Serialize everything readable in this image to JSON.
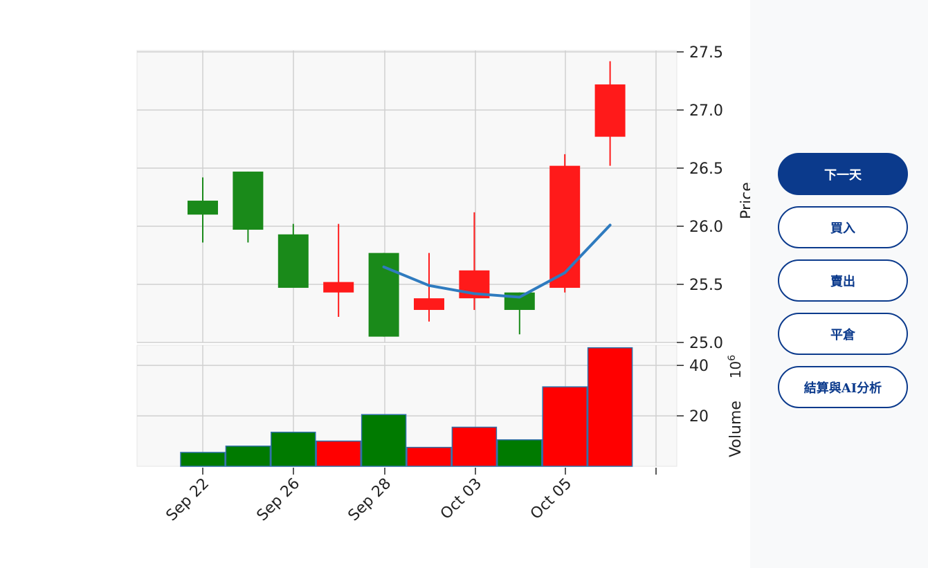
{
  "actions": {
    "next_day": "下一天",
    "buy": "買入",
    "sell": "賣出",
    "close_position": "平倉",
    "settle_ai": "結算與AI分析"
  },
  "colors": {
    "up": "#ff1a1a",
    "down": "#1a8a1a",
    "ma": "#2f7bbf",
    "accent": "#0b3a8c"
  },
  "chart_data": {
    "type": "candlestick",
    "price_axis": {
      "label": "Price",
      "ylim": [
        25.0,
        27.5
      ],
      "ticks": [
        "25.0",
        "25.5",
        "26.0",
        "26.5",
        "27.0",
        "27.5"
      ]
    },
    "volume_axis": {
      "label": "Volume",
      "multiplier_label": "1e6",
      "ticks": [
        "20",
        "40"
      ],
      "ylim": [
        0,
        48
      ]
    },
    "x_tick_labels": [
      "Sep 22",
      "Sep 26",
      "Sep 28",
      "Oct 03",
      "Oct 05"
    ],
    "candles": [
      {
        "open": 26.22,
        "high": 26.42,
        "low": 25.86,
        "close": 26.1,
        "volume": 5.5
      },
      {
        "open": 26.47,
        "high": 26.47,
        "low": 25.86,
        "close": 25.97,
        "volume": 8.0
      },
      {
        "open": 25.93,
        "high": 26.02,
        "low": 25.47,
        "close": 25.47,
        "volume": 13.5
      },
      {
        "open": 25.43,
        "high": 26.02,
        "low": 25.22,
        "close": 25.52,
        "volume": 10.0
      },
      {
        "open": 25.77,
        "high": 25.77,
        "low": 25.05,
        "close": 25.05,
        "volume": 20.5
      },
      {
        "open": 25.28,
        "high": 25.77,
        "low": 25.18,
        "close": 25.38,
        "volume": 7.5
      },
      {
        "open": 25.38,
        "high": 26.12,
        "low": 25.28,
        "close": 25.62,
        "volume": 15.5
      },
      {
        "open": 25.43,
        "high": 25.43,
        "low": 25.07,
        "close": 25.28,
        "volume": 10.5
      },
      {
        "open": 25.47,
        "high": 26.62,
        "low": 25.43,
        "close": 26.52,
        "volume": 31.5
      },
      {
        "open": 26.77,
        "high": 27.42,
        "low": 26.52,
        "close": 27.22,
        "volume": 47.0
      }
    ],
    "ma_line": [
      {
        "index": 4,
        "value": 25.65
      },
      {
        "index": 5,
        "value": 25.49
      },
      {
        "index": 6,
        "value": 25.42
      },
      {
        "index": 7,
        "value": 25.39
      },
      {
        "index": 8,
        "value": 25.6
      },
      {
        "index": 9,
        "value": 26.01
      }
    ],
    "grid": true
  }
}
